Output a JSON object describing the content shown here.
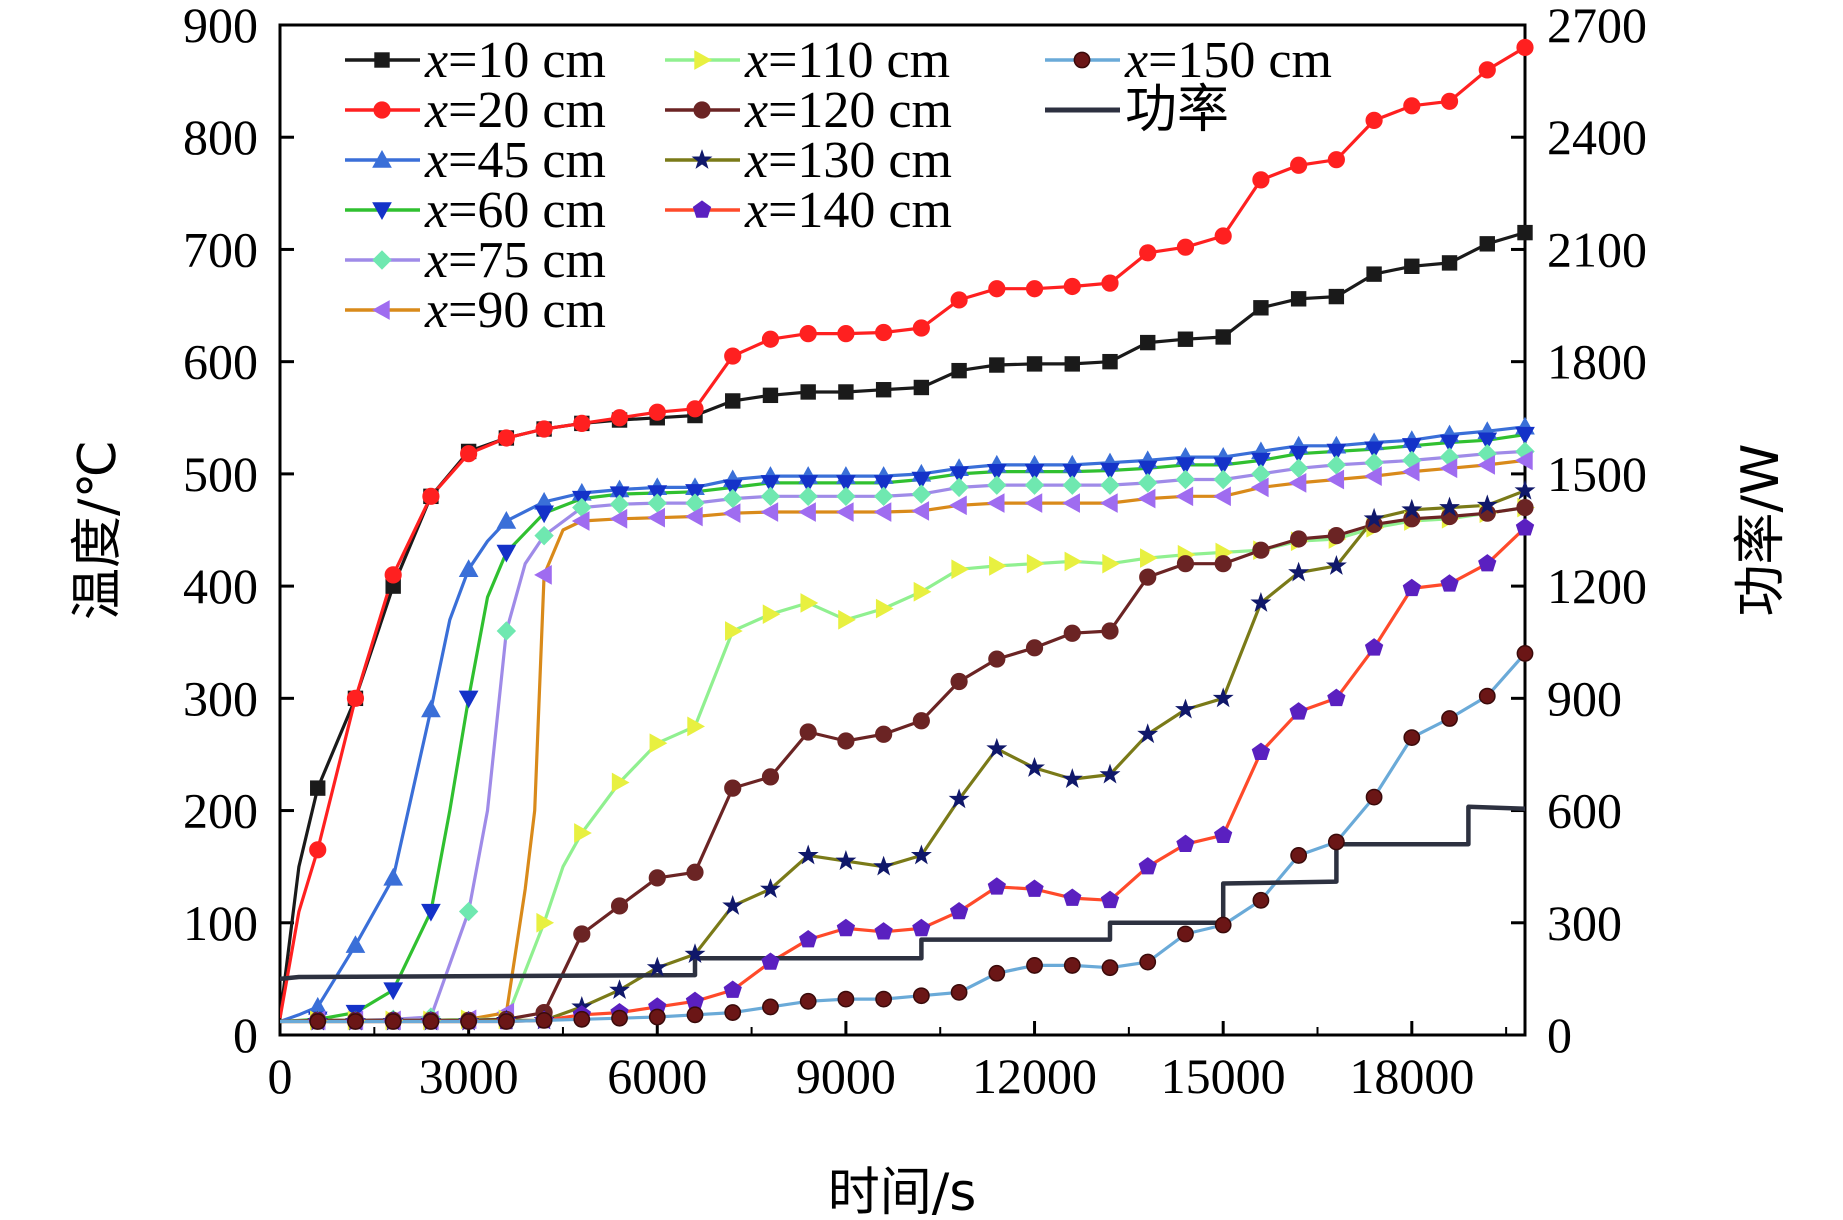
{
  "chart_data": {
    "type": "line",
    "xlabel": "时间/s",
    "ylabel_left": "温度/℃",
    "ylabel_right": "功率/W",
    "xlim": [
      0,
      19800
    ],
    "ylim_left": [
      0,
      900
    ],
    "ylim_right": [
      0,
      2700
    ],
    "xticks": [
      "0",
      "3000",
      "6000",
      "9000",
      "12000",
      "15000",
      "18000"
    ],
    "xtick_values": [
      0,
      3000,
      6000,
      9000,
      12000,
      15000,
      18000
    ],
    "yticks_left": [
      "0",
      "100",
      "200",
      "300",
      "400",
      "500",
      "600",
      "700",
      "800",
      "900"
    ],
    "ytick_values_left": [
      0,
      100,
      200,
      300,
      400,
      500,
      600,
      700,
      800,
      900
    ],
    "yticks_right": [
      "0",
      "300",
      "600",
      "900",
      "1200",
      "1500",
      "1800",
      "2100",
      "2400",
      "2700"
    ],
    "ytick_values_right": [
      0,
      300,
      600,
      900,
      1200,
      1500,
      1800,
      2100,
      2400,
      2700
    ],
    "grid": false,
    "legend_position": "top-left",
    "series": [
      {
        "name": "x=10 cm",
        "var": "x",
        "rest": "=10 cm",
        "color": "#1a1a1a",
        "marker": "square",
        "axis": "left",
        "x": [
          0,
          300,
          600,
          1200,
          1800,
          2400,
          3000,
          3600,
          4200,
          4800,
          5400,
          6000,
          6600,
          7200,
          7800,
          8400,
          9000,
          9600,
          10200,
          10800,
          11400,
          12000,
          12600,
          13200,
          13800,
          14400,
          15000,
          15600,
          16200,
          16800,
          17400,
          18000,
          18600,
          19200,
          19800
        ],
        "y": [
          15,
          150,
          220,
          300,
          400,
          480,
          520,
          532,
          540,
          545,
          548,
          550,
          552,
          565,
          570,
          573,
          573,
          575,
          577,
          592,
          597,
          598,
          598,
          600,
          617,
          620,
          622,
          648,
          656,
          658,
          678,
          685,
          688,
          705,
          715
        ]
      },
      {
        "name": "x=20 cm",
        "var": "x",
        "rest": "=20 cm",
        "color": "#ff2020",
        "marker": "circle",
        "axis": "left",
        "x": [
          0,
          300,
          600,
          1200,
          1800,
          2400,
          3000,
          3600,
          4200,
          4800,
          5400,
          6000,
          6600,
          7200,
          7800,
          8400,
          9000,
          9600,
          10200,
          10800,
          11400,
          12000,
          12600,
          13200,
          13800,
          14400,
          15000,
          15600,
          16200,
          16800,
          17400,
          18000,
          18600,
          19200,
          19800
        ],
        "y": [
          15,
          110,
          165,
          300,
          410,
          480,
          518,
          532,
          540,
          545,
          550,
          555,
          558,
          605,
          620,
          625,
          625,
          626,
          630,
          655,
          665,
          665,
          667,
          670,
          697,
          702,
          712,
          762,
          775,
          780,
          815,
          828,
          832,
          860,
          880
        ]
      },
      {
        "name": "x=45 cm",
        "var": "x",
        "rest": "=45 cm",
        "color": "#3a6fd8",
        "marker": "triangle-up",
        "axis": "left",
        "x": [
          0,
          300,
          600,
          1200,
          1800,
          2400,
          2700,
          3000,
          3300,
          3600,
          4200,
          4800,
          5400,
          6000,
          6600,
          7200,
          7800,
          8400,
          9000,
          9600,
          10200,
          10800,
          11400,
          12000,
          12600,
          13200,
          13800,
          14400,
          15000,
          15600,
          16200,
          16800,
          17400,
          18000,
          18600,
          19200,
          19800
        ],
        "y": [
          12,
          18,
          25,
          80,
          140,
          290,
          370,
          415,
          440,
          458,
          475,
          483,
          486,
          488,
          488,
          495,
          498,
          498,
          498,
          498,
          500,
          505,
          508,
          508,
          508,
          510,
          512,
          515,
          515,
          520,
          525,
          525,
          528,
          530,
          535,
          538,
          542
        ]
      },
      {
        "name": "x=60 cm",
        "var": "x",
        "rest": "=60 cm",
        "color": "#30c030",
        "marker": "triangle-down",
        "axis": "left",
        "x": [
          0,
          600,
          1200,
          1800,
          2400,
          2700,
          3000,
          3300,
          3600,
          4200,
          4800,
          5400,
          6000,
          6600,
          7200,
          7800,
          8400,
          9000,
          9600,
          10200,
          10800,
          11400,
          12000,
          12600,
          13200,
          13800,
          14400,
          15000,
          15600,
          16200,
          16800,
          17400,
          18000,
          18600,
          19200,
          19800
        ],
        "y": [
          12,
          14,
          20,
          40,
          110,
          200,
          300,
          390,
          430,
          465,
          478,
          482,
          483,
          484,
          488,
          492,
          492,
          492,
          492,
          495,
          500,
          502,
          502,
          502,
          503,
          505,
          508,
          508,
          512,
          518,
          520,
          522,
          525,
          528,
          530,
          535
        ]
      },
      {
        "name": "x=75 cm",
        "var": "x",
        "rest": "=75 cm",
        "color": "#9f8be8",
        "marker": "diamond",
        "axis": "left",
        "x": [
          0,
          600,
          1200,
          1800,
          2400,
          3000,
          3300,
          3600,
          3900,
          4200,
          4800,
          5400,
          6000,
          6600,
          7200,
          7800,
          8400,
          9000,
          9600,
          10200,
          10800,
          11400,
          12000,
          12600,
          13200,
          13800,
          14400,
          15000,
          15600,
          16200,
          16800,
          17400,
          18000,
          18600,
          19200,
          19800
        ],
        "y": [
          12,
          13,
          13,
          14,
          16,
          110,
          200,
          360,
          420,
          445,
          470,
          473,
          474,
          474,
          478,
          480,
          480,
          480,
          480,
          482,
          488,
          490,
          490,
          490,
          490,
          492,
          495,
          495,
          500,
          505,
          508,
          510,
          512,
          515,
          518,
          520
        ]
      },
      {
        "name": "x=90 cm",
        "var": "x",
        "rest": "=90 cm",
        "color": "#d98a1a",
        "marker": "triangle-left",
        "axis": "left",
        "x": [
          0,
          600,
          1200,
          1800,
          2400,
          3000,
          3600,
          3900,
          4050,
          4200,
          4500,
          4800,
          5400,
          6000,
          6600,
          7200,
          7800,
          8400,
          9000,
          9600,
          10200,
          10800,
          11400,
          12000,
          12600,
          13200,
          13800,
          14400,
          15000,
          15600,
          16200,
          16800,
          17400,
          18000,
          18600,
          19200,
          19800
        ],
        "y": [
          12,
          13,
          13,
          13,
          13,
          14,
          20,
          130,
          200,
          410,
          450,
          458,
          460,
          461,
          462,
          465,
          466,
          466,
          466,
          466,
          467,
          472,
          474,
          474,
          474,
          474,
          478,
          480,
          480,
          488,
          492,
          495,
          498,
          502,
          505,
          508,
          512
        ]
      },
      {
        "name": "x=110 cm",
        "var": "x",
        "rest": "=110 cm",
        "color": "#90f090",
        "marker": "triangle-right",
        "axis": "left",
        "x": [
          0,
          600,
          1200,
          1800,
          2400,
          3000,
          3600,
          4200,
          4500,
          4800,
          5400,
          6000,
          6600,
          7200,
          7800,
          8400,
          9000,
          9600,
          10200,
          10800,
          11400,
          12000,
          12600,
          13200,
          13800,
          14400,
          15000,
          15600,
          16200,
          16800,
          17400,
          18000,
          18600,
          19200,
          19800
        ],
        "y": [
          12,
          13,
          13,
          13,
          13,
          14,
          14,
          100,
          150,
          180,
          225,
          260,
          275,
          360,
          375,
          385,
          370,
          380,
          395,
          415,
          418,
          420,
          422,
          420,
          425,
          428,
          430,
          432,
          440,
          442,
          452,
          458,
          460,
          465,
          470
        ]
      },
      {
        "name": "x=120 cm",
        "var": "x",
        "rest": "=120 cm",
        "color": "#6b2424",
        "marker": "circle",
        "axis": "left",
        "x": [
          0,
          600,
          1200,
          1800,
          2400,
          3000,
          3600,
          4200,
          4800,
          5400,
          6000,
          6600,
          7200,
          7800,
          8400,
          9000,
          9600,
          10200,
          10800,
          11400,
          12000,
          12600,
          13200,
          13800,
          14400,
          15000,
          15600,
          16200,
          16800,
          17400,
          18000,
          18600,
          19200,
          19800
        ],
        "y": [
          12,
          13,
          13,
          13,
          13,
          13,
          14,
          20,
          90,
          115,
          140,
          145,
          220,
          230,
          270,
          262,
          268,
          280,
          315,
          335,
          345,
          358,
          360,
          408,
          420,
          420,
          432,
          442,
          445,
          455,
          460,
          462,
          465,
          470
        ]
      },
      {
        "name": "x=130 cm",
        "var": "x",
        "rest": "=130 cm",
        "color": "#7a7a18",
        "marker": "star",
        "axis": "left",
        "x": [
          0,
          600,
          1200,
          1800,
          2400,
          3000,
          3600,
          4200,
          4800,
          5400,
          6000,
          6600,
          7200,
          7800,
          8400,
          9000,
          9600,
          10200,
          10800,
          11400,
          12000,
          12600,
          13200,
          13800,
          14400,
          15000,
          15600,
          16200,
          16800,
          17400,
          18000,
          18600,
          19200,
          19800
        ],
        "y": [
          12,
          12,
          12,
          12,
          12,
          12,
          13,
          13,
          25,
          40,
          60,
          72,
          115,
          130,
          160,
          155,
          150,
          160,
          210,
          255,
          238,
          228,
          232,
          268,
          290,
          300,
          385,
          412,
          418,
          460,
          468,
          470,
          472,
          485
        ]
      },
      {
        "name": "x=140 cm",
        "var": "x",
        "rest": "=140 cm",
        "color": "#ff4a2a",
        "marker": "pentagon",
        "axis": "left",
        "x": [
          0,
          600,
          1200,
          1800,
          2400,
          3000,
          3600,
          4200,
          4800,
          5400,
          6000,
          6600,
          7200,
          7800,
          8400,
          9000,
          9600,
          10200,
          10800,
          11400,
          12000,
          12600,
          13200,
          13800,
          14400,
          15000,
          15600,
          16200,
          16800,
          17400,
          18000,
          18600,
          19200,
          19800
        ],
        "y": [
          12,
          12,
          12,
          12,
          12,
          12,
          12,
          13,
          18,
          20,
          25,
          30,
          40,
          65,
          85,
          95,
          92,
          95,
          110,
          132,
          130,
          122,
          120,
          150,
          170,
          178,
          252,
          288,
          300,
          345,
          398,
          402,
          420,
          452
        ]
      },
      {
        "name": "x=150 cm",
        "var": "x",
        "rest": "=150 cm",
        "color": "#6aaad8",
        "marker": "ball",
        "axis": "left",
        "x": [
          0,
          600,
          1200,
          1800,
          2400,
          3000,
          3600,
          4200,
          4800,
          5400,
          6000,
          6600,
          7200,
          7800,
          8400,
          9000,
          9600,
          10200,
          10800,
          11400,
          12000,
          12600,
          13200,
          13800,
          14400,
          15000,
          15600,
          16200,
          16800,
          17400,
          18000,
          18600,
          19200,
          19800
        ],
        "y": [
          12,
          12,
          12,
          12,
          12,
          12,
          12,
          13,
          14,
          15,
          16,
          18,
          20,
          25,
          30,
          32,
          32,
          35,
          38,
          55,
          62,
          62,
          60,
          65,
          90,
          98,
          120,
          160,
          172,
          212,
          265,
          282,
          302,
          340
        ]
      },
      {
        "name": "功率",
        "var": "",
        "rest": "功率",
        "color": "#2d3140",
        "marker": "none",
        "axis": "right",
        "x": [
          0,
          300,
          6600,
          6600,
          10200,
          10200,
          13200,
          13200,
          15000,
          15000,
          16800,
          16800,
          18900,
          18900,
          19800
        ],
        "y": [
          150,
          155,
          160,
          205,
          205,
          255,
          255,
          300,
          300,
          405,
          410,
          510,
          510,
          610,
          605
        ]
      }
    ]
  }
}
